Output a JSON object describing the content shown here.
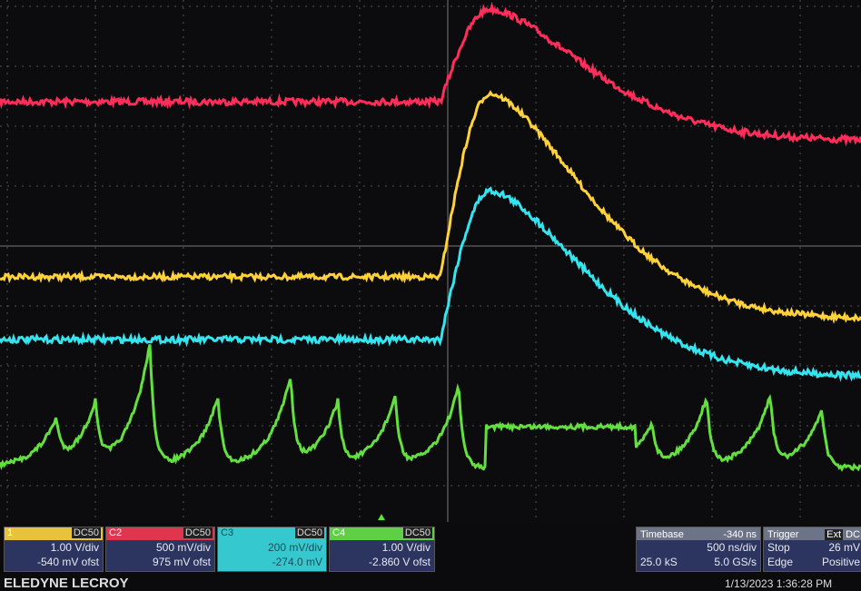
{
  "channels": [
    {
      "name": "1",
      "coupling": "DC50",
      "scale": "1.00 V/div",
      "offset": "-540 mV ofst"
    },
    {
      "name": "C2",
      "coupling": "DC50",
      "scale": "500 mV/div",
      "offset": "975 mV ofst"
    },
    {
      "name": "C3",
      "coupling": "DC50",
      "scale": "200 mV/div",
      "offset": "-274.0 mV"
    },
    {
      "name": "C4",
      "coupling": "DC50",
      "scale": "1.00 V/div",
      "offset": "-2.860 V ofst"
    }
  ],
  "timebase": {
    "label": "Timebase",
    "delay": "-340 ns",
    "scale": "500 ns/div",
    "samples": "25.0 kS",
    "rate": "5.0 GS/s"
  },
  "trigger": {
    "label": "Trigger",
    "source": "Ext",
    "coupling": "DC",
    "mode": "Stop",
    "level": "26 mV",
    "type": "Edge",
    "slope": "Positive"
  },
  "brand": "ELEDYNE LECROY",
  "timestamp": "1/13/2023 1:36:28 PM"
}
